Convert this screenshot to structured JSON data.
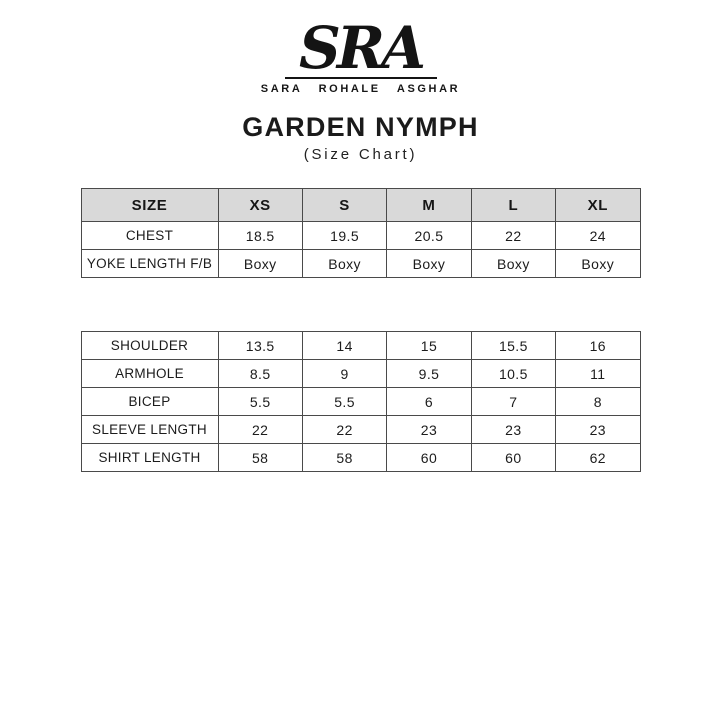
{
  "brand": {
    "monogram": "SRA",
    "name": "SARA ROHALE ASGHAR"
  },
  "header": {
    "title": "GARDEN NYMPH",
    "subtitle": "(Size Chart)"
  },
  "colors": {
    "header_row_bg": "#d9d9d9",
    "table_border": "#4a4a4a",
    "text": "#1c1c1c",
    "background": "#ffffff"
  },
  "size_table": {
    "columns": [
      "SIZE",
      "XS",
      "S",
      "M",
      "L",
      "XL"
    ],
    "rows": [
      {
        "label": "CHEST",
        "values": [
          "18.5",
          "19.5",
          "20.5",
          "22",
          "24"
        ]
      },
      {
        "label": "YOKE LENGTH F/B",
        "values": [
          "Boxy",
          "Boxy",
          "Boxy",
          "Boxy",
          "Boxy"
        ]
      }
    ]
  },
  "measure_table": {
    "rows": [
      {
        "label": "SHOULDER",
        "values": [
          "13.5",
          "14",
          "15",
          "15.5",
          "16"
        ]
      },
      {
        "label": "ARMHOLE",
        "values": [
          "8.5",
          "9",
          "9.5",
          "10.5",
          "11"
        ]
      },
      {
        "label": "BICEP",
        "values": [
          "5.5",
          "5.5",
          "6",
          "7",
          "8"
        ]
      },
      {
        "label": "SLEEVE LENGTH",
        "values": [
          "22",
          "22",
          "23",
          "23",
          "23"
        ]
      },
      {
        "label": "SHIRT LENGTH",
        "values": [
          "58",
          "58",
          "60",
          "60",
          "62"
        ]
      }
    ]
  },
  "chart_data": [
    {
      "type": "table",
      "title": "GARDEN NYMPH (Size Chart)",
      "columns": [
        "SIZE",
        "XS",
        "S",
        "M",
        "L",
        "XL"
      ],
      "rows": [
        [
          "CHEST",
          "18.5",
          "19.5",
          "20.5",
          "22",
          "24"
        ],
        [
          "YOKE LENGTH F/B",
          "Boxy",
          "Boxy",
          "Boxy",
          "Boxy",
          "Boxy"
        ]
      ]
    },
    {
      "type": "table",
      "title": "GARDEN NYMPH measurements (sizes XS-XL)",
      "columns": [
        "",
        "XS",
        "S",
        "M",
        "L",
        "XL"
      ],
      "rows": [
        [
          "SHOULDER",
          "13.5",
          "14",
          "15",
          "15.5",
          "16"
        ],
        [
          "ARMHOLE",
          "8.5",
          "9",
          "9.5",
          "10.5",
          "11"
        ],
        [
          "BICEP",
          "5.5",
          "5.5",
          "6",
          "7",
          "8"
        ],
        [
          "SLEEVE LENGTH",
          "22",
          "22",
          "23",
          "23",
          "23"
        ],
        [
          "SHIRT LENGTH",
          "58",
          "58",
          "60",
          "60",
          "62"
        ]
      ]
    }
  ]
}
